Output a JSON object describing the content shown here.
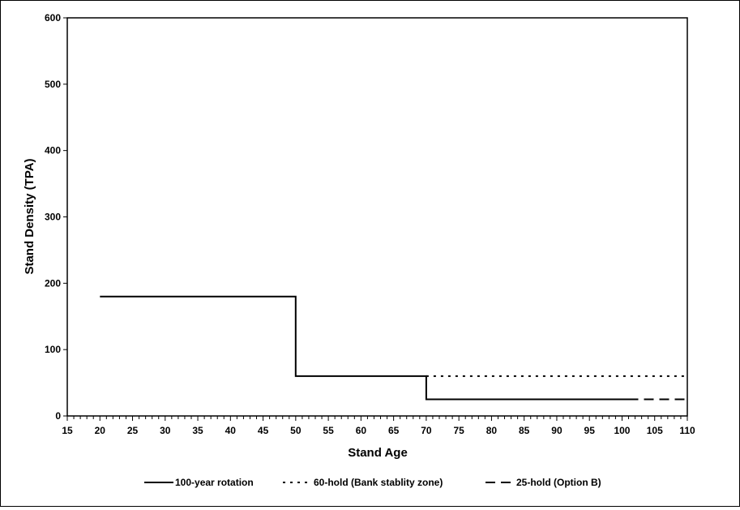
{
  "chart_data": {
    "type": "line",
    "title": "",
    "xlabel": "Stand Age",
    "ylabel": "Stand Density (TPA)",
    "xlim": [
      15,
      110
    ],
    "ylim": [
      0,
      600
    ],
    "x_ticks": [
      15,
      20,
      25,
      30,
      35,
      40,
      45,
      50,
      55,
      60,
      65,
      70,
      75,
      80,
      85,
      90,
      95,
      100,
      105,
      110
    ],
    "y_ticks": [
      0,
      100,
      200,
      300,
      400,
      500,
      600
    ],
    "grid": false,
    "legend_position": "bottom",
    "series": [
      {
        "name": "100-year rotation",
        "style": "solid",
        "color": "#000000",
        "points": [
          [
            20,
            180
          ],
          [
            50,
            180
          ],
          [
            50,
            60
          ],
          [
            70,
            60
          ],
          [
            70,
            25
          ],
          [
            101,
            25
          ]
        ]
      },
      {
        "name": "60-hold  (Bank stablity zone)",
        "style": "dotted",
        "color": "#000000",
        "points": [
          [
            70,
            60
          ],
          [
            110,
            60
          ]
        ]
      },
      {
        "name": "25-hold (Option B)",
        "style": "dashed",
        "color": "#000000",
        "points": [
          [
            101,
            25
          ],
          [
            110,
            25
          ]
        ]
      }
    ]
  }
}
